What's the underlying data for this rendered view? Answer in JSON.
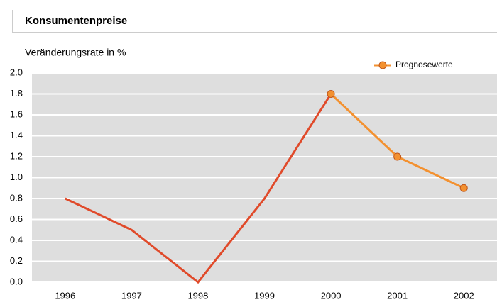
{
  "chart_data": {
    "type": "line",
    "title": "Konsumentenpreise",
    "y_label": "Veränderungsrate in %",
    "categories": [
      "1996",
      "1997",
      "1998",
      "1999",
      "2000",
      "2001",
      "2002"
    ],
    "series": [
      {
        "color": "#e04a2a",
        "markers": false,
        "values": [
          0.8,
          0.5,
          0.0,
          0.8,
          1.8,
          null,
          null
        ]
      },
      {
        "name": "Prognosewerte",
        "color": "#f39130",
        "markers": true,
        "values": [
          null,
          null,
          null,
          null,
          1.8,
          1.2,
          0.9
        ]
      }
    ],
    "ylim": [
      0,
      2
    ],
    "yticks": [
      {
        "value": 0,
        "label": "0.0"
      },
      0.2,
      0.4,
      0.6,
      0.8,
      {
        "value": 1,
        "label": "1.0"
      },
      1.2,
      1.4,
      1.6,
      1.8,
      {
        "value": 2,
        "label": "2.0"
      }
    ],
    "grid": true,
    "legend": "top-right"
  }
}
